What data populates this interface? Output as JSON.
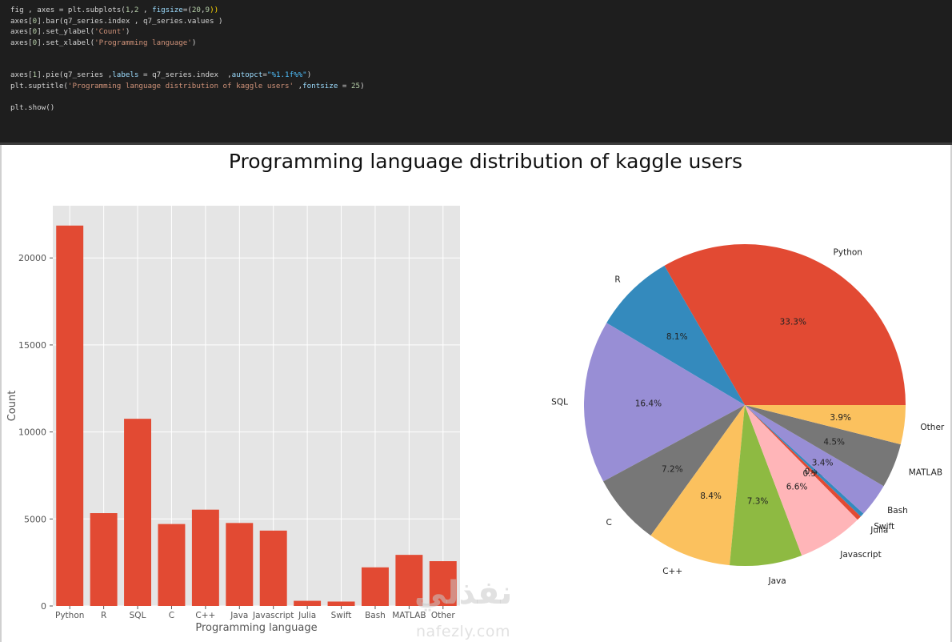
{
  "code": {
    "lines": [
      [
        {
          "t": "fig , axes = plt.subplots(",
          "c": "#d4d4d4"
        },
        {
          "t": "1",
          "c": "#b5cea8"
        },
        {
          "t": ",",
          "c": "#d4d4d4"
        },
        {
          "t": "2",
          "c": "#b5cea8"
        },
        {
          "t": " , ",
          "c": "#d4d4d4"
        },
        {
          "t": "figsize",
          "c": "#9cdcfe"
        },
        {
          "t": "=(",
          "c": "#d4d4d4"
        },
        {
          "t": "20",
          "c": "#b5cea8"
        },
        {
          "t": ",",
          "c": "#d4d4d4"
        },
        {
          "t": "9",
          "c": "#b5cea8"
        },
        {
          "t": "))",
          "c": "#ffd700"
        }
      ],
      [
        {
          "t": "axes[",
          "c": "#d4d4d4"
        },
        {
          "t": "0",
          "c": "#b5cea8"
        },
        {
          "t": "].bar(q7_series.index , q7_series.values )",
          "c": "#d4d4d4"
        }
      ],
      [
        {
          "t": "axes[",
          "c": "#d4d4d4"
        },
        {
          "t": "0",
          "c": "#b5cea8"
        },
        {
          "t": "].set_ylabel(",
          "c": "#d4d4d4"
        },
        {
          "t": "'Count'",
          "c": "#ce9178"
        },
        {
          "t": ")",
          "c": "#d4d4d4"
        }
      ],
      [
        {
          "t": "axes[",
          "c": "#d4d4d4"
        },
        {
          "t": "0",
          "c": "#b5cea8"
        },
        {
          "t": "].set_xlabel(",
          "c": "#d4d4d4"
        },
        {
          "t": "'Programming language'",
          "c": "#ce9178"
        },
        {
          "t": ")",
          "c": "#d4d4d4"
        }
      ],
      [],
      [],
      [
        {
          "t": "axes[",
          "c": "#d4d4d4"
        },
        {
          "t": "1",
          "c": "#b5cea8"
        },
        {
          "t": "].pie(q7_series ,",
          "c": "#d4d4d4"
        },
        {
          "t": "labels",
          "c": "#9cdcfe"
        },
        {
          "t": " = q7_series.index  ,",
          "c": "#d4d4d4"
        },
        {
          "t": "autopct",
          "c": "#9cdcfe"
        },
        {
          "t": "=",
          "c": "#d4d4d4"
        },
        {
          "t": "\"%1.1f%%\"",
          "c": "#4fc1ff"
        },
        {
          "t": ")",
          "c": "#d4d4d4"
        }
      ],
      [
        {
          "t": "plt.suptitle(",
          "c": "#d4d4d4"
        },
        {
          "t": "'Programming language distribution of kaggle users'",
          "c": "#ce9178"
        },
        {
          "t": " ,",
          "c": "#d4d4d4"
        },
        {
          "t": "fontsize",
          "c": "#9cdcfe"
        },
        {
          "t": " = ",
          "c": "#d4d4d4"
        },
        {
          "t": "25",
          "c": "#b5cea8"
        },
        {
          "t": ")",
          "c": "#d4d4d4"
        }
      ],
      [],
      [
        {
          "t": "plt.show()",
          "c": "#d4d4d4"
        }
      ]
    ]
  },
  "watermark": {
    "arabic": "نفذلي",
    "latin": "nafezly.com"
  },
  "chart_data": {
    "suptitle": "Programming language distribution of kaggle users",
    "bar": {
      "type": "bar",
      "categories": [
        "Python",
        "R",
        "SQL",
        "C",
        "C++",
        "Java",
        "Javascript",
        "Julia",
        "Swift",
        "Bash",
        "MATLAB",
        "Other"
      ],
      "values": [
        21860,
        5335,
        10757,
        4709,
        5535,
        4769,
        4332,
        296,
        254,
        2220,
        2937,
        2575
      ],
      "xlabel": "Programming language",
      "ylabel": "Count",
      "ylim": [
        0,
        23000
      ],
      "yticks": [
        0,
        5000,
        10000,
        15000,
        20000
      ],
      "grid": true,
      "color": "#E24A33"
    },
    "pie": {
      "type": "pie",
      "labels": [
        "Python",
        "R",
        "SQL",
        "C",
        "C++",
        "Java",
        "Javascript",
        "Julia",
        "Swift",
        "Bash",
        "MATLAB",
        "Other"
      ],
      "values": [
        21860,
        5335,
        10757,
        4709,
        5535,
        4769,
        4332,
        296,
        254,
        2220,
        2937,
        2575
      ],
      "pct_labels": [
        "33.3%",
        "8.1%",
        "16.4%",
        "7.2%",
        "8.4%",
        "7.3%",
        "6.6%",
        "0.5%",
        "0.4%",
        "3.4%",
        "4.5%",
        "3.9%"
      ],
      "colors": [
        "#E24A33",
        "#348ABD",
        "#988ED5",
        "#777777",
        "#FBC15E",
        "#8EBA42",
        "#FFB5B8",
        "#E24A33",
        "#348ABD",
        "#988ED5",
        "#777777",
        "#FBC15E"
      ]
    }
  }
}
